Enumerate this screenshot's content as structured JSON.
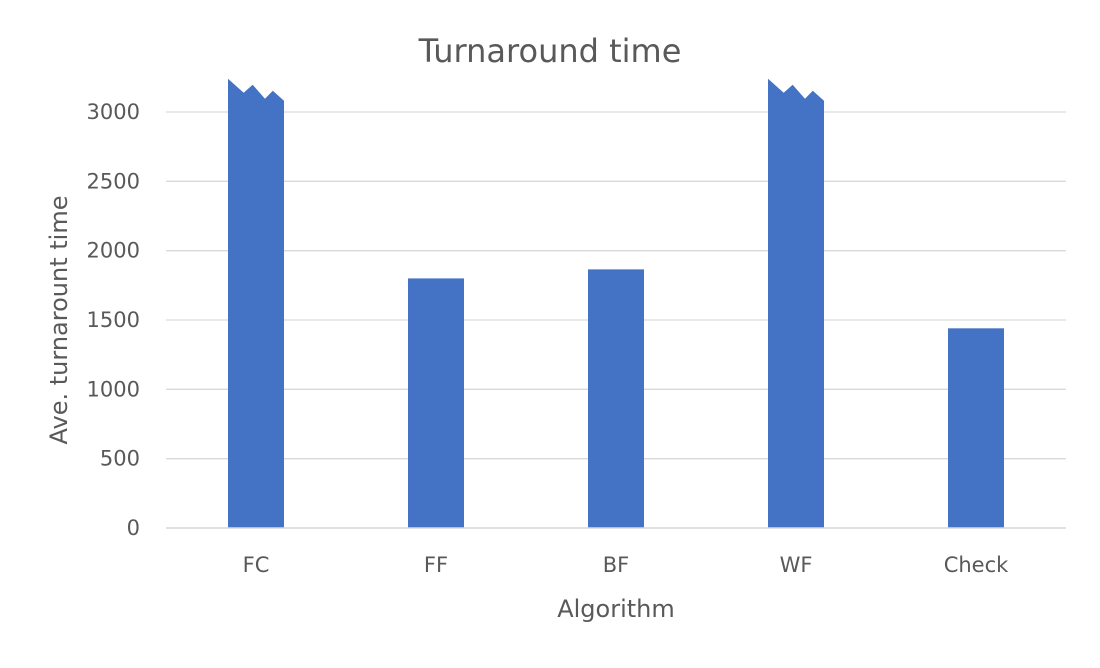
{
  "chart_data": {
    "type": "bar",
    "title": "Turnaround time",
    "xlabel": "Algorithm",
    "ylabel": "Ave. turnarount time",
    "categories": [
      "FC",
      "FF",
      "BF",
      "WF",
      "Check"
    ],
    "values": [
      3240,
      1800,
      1865,
      3240,
      1440
    ],
    "broken": [
      true,
      false,
      false,
      true,
      false
    ],
    "ylim": [
      0,
      3250
    ],
    "yticks": [
      0,
      500,
      1000,
      1500,
      2000,
      2500,
      3000
    ],
    "grid": true,
    "legend": "none",
    "colors": {
      "bar": "#4472C4",
      "grid": "#D9D9D9",
      "text": "#595959"
    }
  }
}
